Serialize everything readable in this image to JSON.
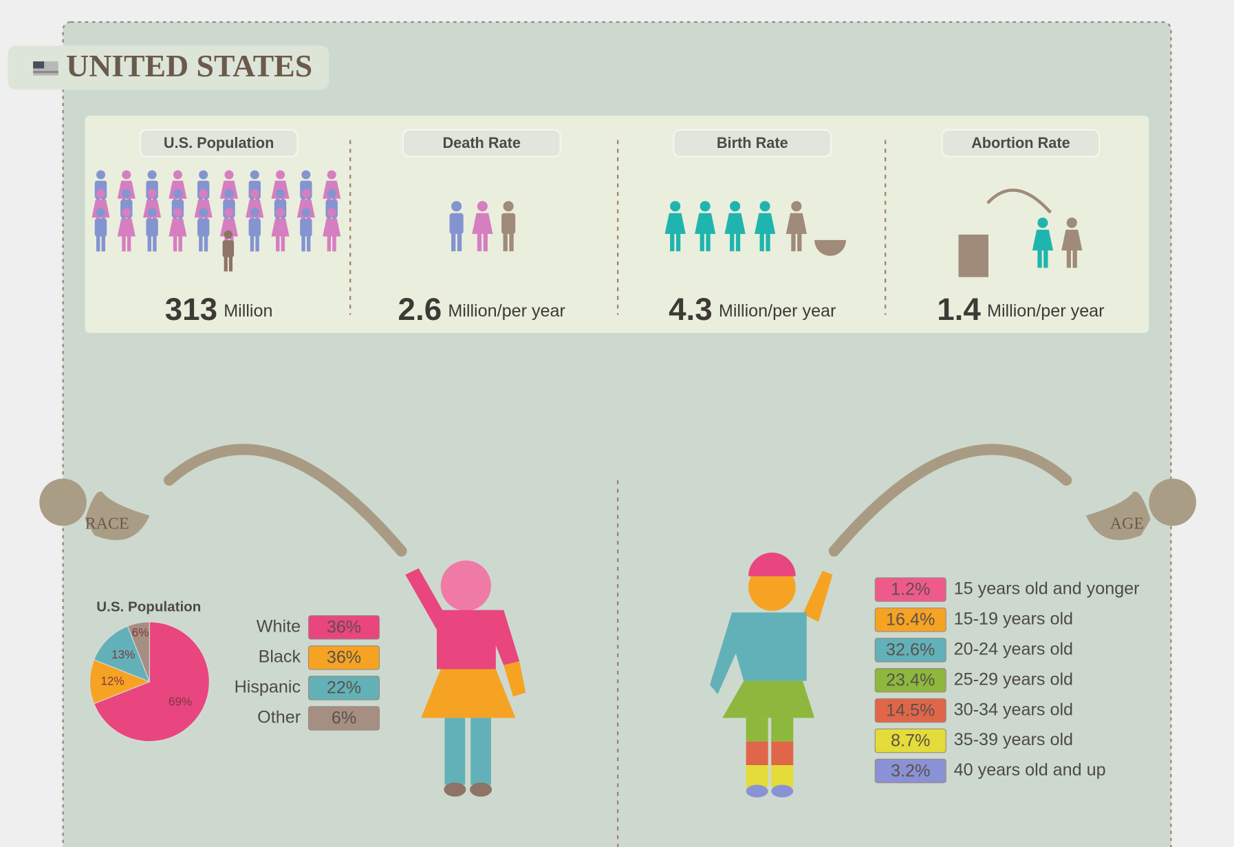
{
  "header": {
    "title": "UNITED STATES"
  },
  "stats": [
    {
      "label": "U.S. Population",
      "value": 313,
      "unit": "Million"
    },
    {
      "label": "Death Rate",
      "value": 2.6,
      "unit": "Million/per year"
    },
    {
      "label": "Birth Rate",
      "value": 4.3,
      "unit": "Million/per year"
    },
    {
      "label": "Abortion Rate",
      "value": 1.4,
      "unit": "Million/per year"
    }
  ],
  "race": {
    "label": "RACE",
    "pie": {
      "type": "pie",
      "title": "U.S. Population",
      "values": [
        69,
        12,
        13,
        6
      ],
      "value_labels": [
        "69%",
        "12%",
        "13%",
        "6%"
      ],
      "colors": [
        "#e9457f",
        "#f6a323",
        "#62b1b8",
        "#a68f82"
      ]
    },
    "legend": {
      "names": [
        "White",
        "Black",
        "Hispanic",
        "Other"
      ],
      "values": [
        36,
        36,
        22,
        6
      ],
      "value_labels": [
        "36%",
        "36%",
        "22%",
        "6%"
      ],
      "colors": [
        "#e9457f",
        "#f6a323",
        "#62b1b8",
        "#a68f82"
      ]
    }
  },
  "age": {
    "label": "AGE",
    "names": [
      "15 years old and yonger",
      "15-19 years old",
      "20-24 years old",
      "25-29 years old",
      "30-34 years old",
      "35-39 years old",
      "40 years old and up"
    ],
    "values": [
      1.2,
      16.4,
      32.6,
      23.4,
      14.5,
      8.7,
      3.2
    ],
    "value_labels": [
      "1.2%",
      "16.4%",
      "32.6%",
      "23.4%",
      "14.5%",
      "8.7%",
      "3.2%"
    ],
    "colors": [
      "#ef5a8c",
      "#f6a323",
      "#62b1b8",
      "#8db83d",
      "#e0664a",
      "#e3dc3a",
      "#8a92d6"
    ]
  }
}
